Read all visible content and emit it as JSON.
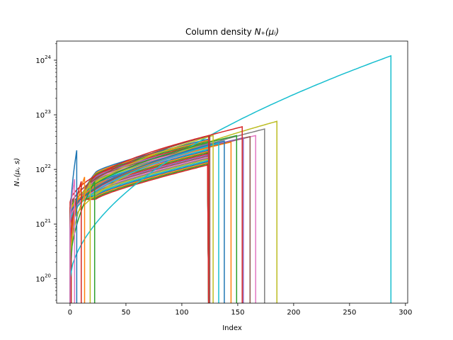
{
  "chart_data": {
    "type": "line",
    "title_text": "Column density ",
    "title_math": "N₊(μᵢ)",
    "xlabel": "Index",
    "ylabel": "N₊(μᵢ, s)",
    "xlim": [
      -12,
      302
    ],
    "ylim_log10": [
      19.55,
      24.35
    ],
    "yscale": "log",
    "grid": false,
    "xticks": [
      0,
      50,
      100,
      150,
      200,
      250,
      300
    ],
    "xtick_labels": [
      "0",
      "50",
      "100",
      "150",
      "200",
      "250",
      "300"
    ],
    "yticks_log10": [
      20,
      21,
      22,
      23,
      24
    ],
    "ytick_base": "10",
    "ytick_exps": [
      "20",
      "21",
      "22",
      "23",
      "24"
    ],
    "colors": [
      "#1f77b4",
      "#ff7f0e",
      "#2ca02c",
      "#d62728",
      "#9467bd",
      "#8c564b",
      "#e377c2",
      "#7f7f7f",
      "#bcbd22",
      "#17becf"
    ],
    "series": [
      {
        "end": 287,
        "base": 20.0,
        "peak": 24.08,
        "color": "#17becf"
      },
      {
        "end": 185,
        "base": 20.9,
        "peak": 22.88,
        "color": "#bcbd22"
      },
      {
        "end": 174,
        "base": 21.05,
        "peak": 22.74,
        "color": "#7f7f7f"
      },
      {
        "end": 166,
        "base": 21.1,
        "peak": 22.62,
        "color": "#e377c2"
      },
      {
        "end": 161,
        "base": 21.15,
        "peak": 22.6,
        "color": "#8c564b"
      },
      {
        "end": 155,
        "base": 21.2,
        "peak": 22.58,
        "color": "#9467bd"
      },
      {
        "end": 154,
        "base": 21.3,
        "peak": 22.78,
        "color": "#d62728"
      },
      {
        "end": 149,
        "base": 21.25,
        "peak": 22.62,
        "color": "#2ca02c"
      },
      {
        "end": 144,
        "base": 21.2,
        "peak": 22.5,
        "color": "#ff7f0e"
      },
      {
        "end": 138,
        "base": 21.15,
        "peak": 22.52,
        "color": "#1f77b4"
      },
      {
        "end": 133,
        "base": 21.05,
        "peak": 22.48,
        "color": "#17becf"
      },
      {
        "end": 128,
        "base": 21.2,
        "peak": 22.62,
        "color": "#bcbd22"
      },
      {
        "end": 125,
        "base": 21.3,
        "peak": 22.62,
        "color": "#8c564b"
      },
      {
        "end": 124,
        "base": 21.4,
        "peak": 22.62,
        "color": "#d62728"
      },
      {
        "end": 22,
        "base": 20.2,
        "peak": 21.78,
        "color": "#2ca02c"
      },
      {
        "end": 18,
        "base": 20.3,
        "peak": 21.76,
        "color": "#bcbd22"
      },
      {
        "end": 13,
        "base": 20.4,
        "peak": 21.86,
        "color": "#ff7f0e"
      },
      {
        "end": 10,
        "base": 20.5,
        "peak": 21.78,
        "color": "#d62728"
      },
      {
        "end": 6,
        "base": 20.9,
        "peak": 22.35,
        "color": "#1f77b4"
      },
      {
        "end": 4,
        "base": 20.9,
        "peak": 21.82,
        "color": "#e377c2"
      }
    ],
    "band": {
      "start": 23,
      "end": 123,
      "count": 24,
      "top_log10_at_start": 21.95,
      "top_log10_at_end": 22.55,
      "bottom_log10_at_start": 21.45,
      "bottom_log10_at_end": 22.08
    }
  }
}
